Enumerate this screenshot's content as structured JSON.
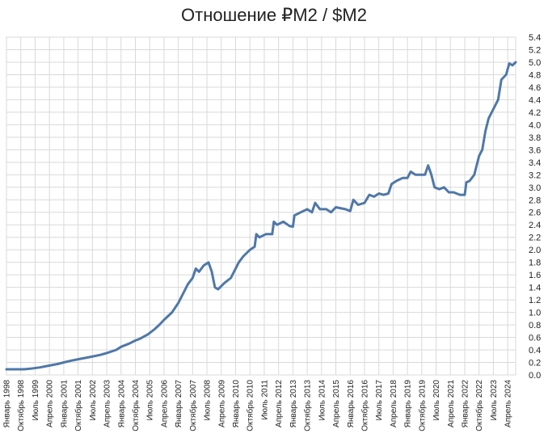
{
  "chart_data": {
    "type": "line",
    "title": "Отношение ₽M2 / $M2",
    "xlabel": "",
    "ylabel": "",
    "ylim": [
      0,
      5.4
    ],
    "ytick_step": 0.2,
    "grid": true,
    "legend": "none",
    "line_color": "#4f78a8",
    "grid_color": "#d9d9d9",
    "x_start": "1998-01",
    "x_end": "2024-09",
    "x_ticks": [
      {
        "date": "1998-01",
        "label": "Январь 1998"
      },
      {
        "date": "1998-10",
        "label": "Октябрь 1998"
      },
      {
        "date": "1999-07",
        "label": "Июль 1999"
      },
      {
        "date": "2000-04",
        "label": "Апрель 2000"
      },
      {
        "date": "2001-01",
        "label": "Январь 2001"
      },
      {
        "date": "2001-10",
        "label": "Октябрь 2001"
      },
      {
        "date": "2002-07",
        "label": "Июль 2002"
      },
      {
        "date": "2003-04",
        "label": "Апрель 2003"
      },
      {
        "date": "2004-01",
        "label": "Январь 2004"
      },
      {
        "date": "2004-10",
        "label": "Октябрь 2004"
      },
      {
        "date": "2005-07",
        "label": "Июль 2005"
      },
      {
        "date": "2006-04",
        "label": "Апрель 2006"
      },
      {
        "date": "2007-01",
        "label": "Январь 2007"
      },
      {
        "date": "2007-10",
        "label": "Октябрь 2007"
      },
      {
        "date": "2008-07",
        "label": "Июль 2008"
      },
      {
        "date": "2009-04",
        "label": "Апрель 2009"
      },
      {
        "date": "2010-01",
        "label": "Январь 2010"
      },
      {
        "date": "2010-10",
        "label": "Октябрь 2010"
      },
      {
        "date": "2011-07",
        "label": "Июль 2011"
      },
      {
        "date": "2012-04",
        "label": "Апрель 2012"
      },
      {
        "date": "2013-01",
        "label": "Январь 2013"
      },
      {
        "date": "2013-10",
        "label": "Октябрь 2013"
      },
      {
        "date": "2014-07",
        "label": "Июль 2014"
      },
      {
        "date": "2015-04",
        "label": "Апрель 2015"
      },
      {
        "date": "2016-01",
        "label": "Январь 2016"
      },
      {
        "date": "2016-10",
        "label": "Октябрь 2016"
      },
      {
        "date": "2017-07",
        "label": "Июль 2017"
      },
      {
        "date": "2018-04",
        "label": "Апрель 2018"
      },
      {
        "date": "2019-01",
        "label": "Январь 2019"
      },
      {
        "date": "2019-10",
        "label": "Октябрь 2019"
      },
      {
        "date": "2020-07",
        "label": "Июль 2020"
      },
      {
        "date": "2021-04",
        "label": "Апрель 2021"
      },
      {
        "date": "2022-01",
        "label": "Январь 2022"
      },
      {
        "date": "2022-10",
        "label": "Октябрь 2022"
      },
      {
        "date": "2023-07",
        "label": "Июль 2023"
      },
      {
        "date": "2024-04",
        "label": "Апрель 2024"
      }
    ],
    "series": [
      {
        "points": [
          [
            "1998-01",
            0.09
          ],
          [
            "1998-06",
            0.09
          ],
          [
            "1998-12",
            0.09
          ],
          [
            "1999-04",
            0.1
          ],
          [
            "1999-10",
            0.12
          ],
          [
            "2000-04",
            0.15
          ],
          [
            "2000-10",
            0.18
          ],
          [
            "2001-01",
            0.2
          ],
          [
            "2001-06",
            0.23
          ],
          [
            "2001-12",
            0.26
          ],
          [
            "2002-06",
            0.29
          ],
          [
            "2002-12",
            0.32
          ],
          [
            "2003-04",
            0.35
          ],
          [
            "2003-10",
            0.4
          ],
          [
            "2004-01",
            0.45
          ],
          [
            "2004-06",
            0.5
          ],
          [
            "2004-10",
            0.55
          ],
          [
            "2005-01",
            0.58
          ],
          [
            "2005-06",
            0.65
          ],
          [
            "2005-10",
            0.73
          ],
          [
            "2006-01",
            0.8
          ],
          [
            "2006-04",
            0.88
          ],
          [
            "2006-09",
            1.0
          ],
          [
            "2007-01",
            1.15
          ],
          [
            "2007-04",
            1.3
          ],
          [
            "2007-07",
            1.45
          ],
          [
            "2007-10",
            1.55
          ],
          [
            "2007-12",
            1.7
          ],
          [
            "2008-02",
            1.65
          ],
          [
            "2008-05",
            1.75
          ],
          [
            "2008-08",
            1.8
          ],
          [
            "2008-10",
            1.65
          ],
          [
            "2008-12",
            1.4
          ],
          [
            "2009-02",
            1.37
          ],
          [
            "2009-06",
            1.47
          ],
          [
            "2009-10",
            1.55
          ],
          [
            "2010-01",
            1.7
          ],
          [
            "2010-03",
            1.8
          ],
          [
            "2010-06",
            1.9
          ],
          [
            "2010-10",
            2.0
          ],
          [
            "2011-01",
            2.05
          ],
          [
            "2011-02",
            2.25
          ],
          [
            "2011-04",
            2.2
          ],
          [
            "2011-08",
            2.25
          ],
          [
            "2011-12",
            2.25
          ],
          [
            "2012-01",
            2.45
          ],
          [
            "2012-03",
            2.4
          ],
          [
            "2012-07",
            2.45
          ],
          [
            "2012-11",
            2.38
          ],
          [
            "2013-01",
            2.37
          ],
          [
            "2013-02",
            2.55
          ],
          [
            "2013-06",
            2.6
          ],
          [
            "2013-10",
            2.65
          ],
          [
            "2014-01",
            2.6
          ],
          [
            "2014-03",
            2.75
          ],
          [
            "2014-06",
            2.65
          ],
          [
            "2014-10",
            2.65
          ],
          [
            "2015-01",
            2.6
          ],
          [
            "2015-04",
            2.68
          ],
          [
            "2015-10",
            2.65
          ],
          [
            "2016-01",
            2.62
          ],
          [
            "2016-03",
            2.8
          ],
          [
            "2016-06",
            2.72
          ],
          [
            "2016-10",
            2.75
          ],
          [
            "2017-01",
            2.88
          ],
          [
            "2017-04",
            2.85
          ],
          [
            "2017-07",
            2.9
          ],
          [
            "2017-10",
            2.88
          ],
          [
            "2018-01",
            2.9
          ],
          [
            "2018-03",
            3.05
          ],
          [
            "2018-06",
            3.1
          ],
          [
            "2018-10",
            3.15
          ],
          [
            "2019-01",
            3.15
          ],
          [
            "2019-03",
            3.25
          ],
          [
            "2019-06",
            3.2
          ],
          [
            "2019-10",
            3.2
          ],
          [
            "2019-12",
            3.2
          ],
          [
            "2020-02",
            3.35
          ],
          [
            "2020-04",
            3.2
          ],
          [
            "2020-06",
            3.0
          ],
          [
            "2020-09",
            2.97
          ],
          [
            "2020-12",
            3.0
          ],
          [
            "2021-03",
            2.92
          ],
          [
            "2021-06",
            2.92
          ],
          [
            "2021-10",
            2.88
          ],
          [
            "2022-01",
            2.88
          ],
          [
            "2022-02",
            3.08
          ],
          [
            "2022-04",
            3.1
          ],
          [
            "2022-07",
            3.2
          ],
          [
            "2022-10",
            3.5
          ],
          [
            "2022-12",
            3.6
          ],
          [
            "2023-02",
            3.9
          ],
          [
            "2023-04",
            4.1
          ],
          [
            "2023-07",
            4.25
          ],
          [
            "2023-10",
            4.4
          ],
          [
            "2023-12",
            4.72
          ],
          [
            "2024-03",
            4.8
          ],
          [
            "2024-05",
            4.98
          ],
          [
            "2024-07",
            4.95
          ],
          [
            "2024-09",
            5.0
          ]
        ]
      }
    ]
  }
}
